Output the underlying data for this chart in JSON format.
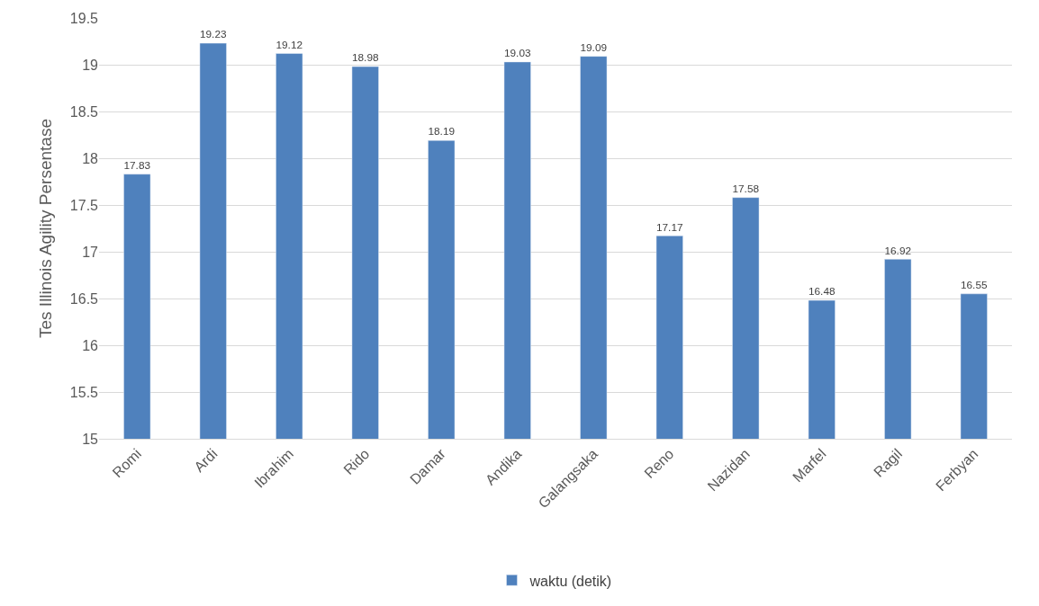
{
  "chart_data": {
    "type": "bar",
    "ylabel": "Tes Illinois Agility Persentase",
    "categories": [
      "Romi",
      "Ardi",
      "Ibrahim",
      "Rido",
      "Damar",
      "Andika",
      "Galangsaka",
      "Reno",
      "Nazidan",
      "Marfel",
      "Ragil",
      "Ferbyan"
    ],
    "series": [
      {
        "name": "waktu (detik)",
        "color": "#4f81bd",
        "values": [
          17.83,
          19.23,
          19.12,
          18.98,
          18.19,
          19.03,
          19.09,
          17.17,
          17.58,
          16.48,
          16.92,
          16.55
        ]
      }
    ],
    "ylim": [
      15,
      19.5
    ],
    "yticks": [
      15,
      15.5,
      16,
      16.5,
      17,
      17.5,
      18,
      18.5,
      19,
      19.5
    ],
    "grid": "y",
    "legend": "bottom",
    "data_labels": true
  }
}
